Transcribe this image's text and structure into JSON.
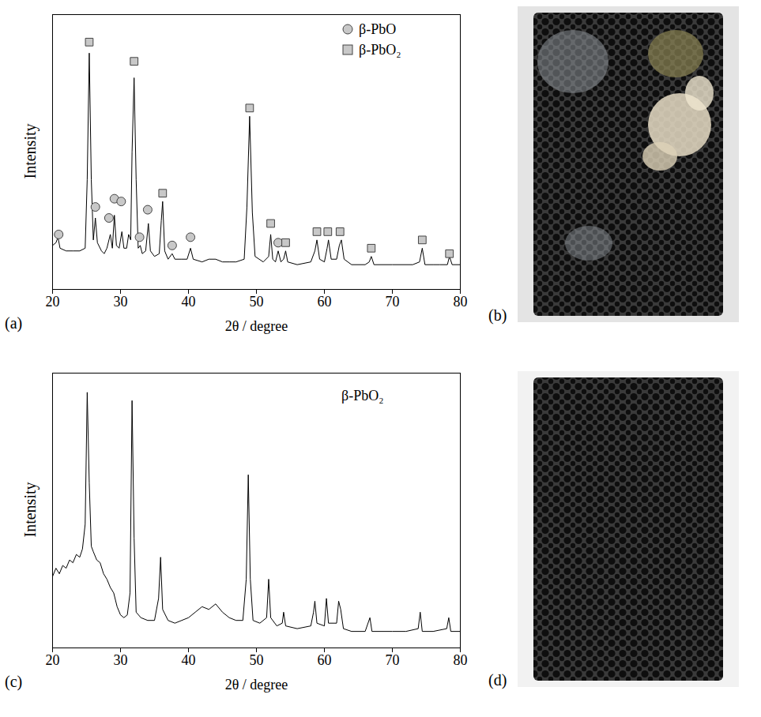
{
  "chart_data": [
    {
      "type": "line",
      "panel_label": "(a)",
      "x_label": "2θ / degree",
      "y_label": "Intensity",
      "xlim": [
        20,
        80
      ],
      "xticks": [
        20,
        30,
        40,
        50,
        60,
        70,
        80
      ],
      "ylim": [
        0,
        100
      ],
      "yticks": [],
      "tick_labels": "x",
      "legend": "top-right",
      "color": "#000000",
      "x": [
        20,
        20.5,
        20.8,
        21.1,
        22,
        23,
        24,
        24.8,
        25.1,
        25.4,
        25.7,
        26.0,
        26.3,
        26.6,
        27.2,
        27.6,
        28.0,
        28.5,
        28.8,
        29.1,
        29.4,
        29.8,
        30.2,
        30.5,
        30.9,
        31.2,
        31.5,
        31.7,
        32.0,
        32.3,
        32.6,
        32.9,
        33.2,
        33.7,
        34.1,
        34.4,
        35.0,
        35.7,
        36.0,
        36.2,
        36.5,
        37.0,
        37.6,
        38.0,
        39.0,
        39.8,
        40.3,
        40.7,
        42,
        43,
        44,
        45,
        46,
        47,
        48.2,
        48.6,
        49.0,
        49.4,
        49.8,
        51,
        51.8,
        52.1,
        52.4,
        52.8,
        53.2,
        53.6,
        54.0,
        54.3,
        54.6,
        56,
        58,
        58.6,
        58.9,
        59.3,
        60.0,
        60.4,
        60.6,
        61.0,
        61.8,
        62.2,
        62.5,
        62.9,
        64,
        66,
        66.6,
        66.9,
        67.3,
        70,
        73,
        74.0,
        74.4,
        74.8,
        76,
        77,
        78.1,
        78.4,
        78.8,
        80
      ],
      "values": [
        16,
        17,
        19,
        15,
        14,
        14,
        14,
        15,
        40,
        86,
        40,
        18,
        26,
        17,
        14,
        13,
        15,
        20,
        15,
        27,
        16,
        15,
        21,
        15,
        15,
        20,
        18,
        50,
        77,
        40,
        15,
        16,
        13,
        14,
        24,
        14,
        12,
        13,
        25,
        32,
        14,
        11,
        13,
        11,
        11,
        11,
        15,
        11,
        10,
        11,
        11,
        10,
        10,
        10,
        11,
        30,
        63,
        28,
        12,
        10,
        12,
        20,
        11,
        10,
        14,
        10,
        11,
        14,
        10,
        9,
        10,
        14,
        18,
        11,
        10,
        15,
        18,
        11,
        11,
        16,
        18,
        11,
        9,
        9,
        10,
        12,
        9,
        9,
        9,
        10,
        15,
        9,
        9,
        9,
        9,
        12,
        9,
        9
      ],
      "series": [
        {
          "name": "β-PbO",
          "type": "scatter",
          "marker": "circle",
          "color": "#c8c8c8",
          "x": [
            20.9,
            26.3,
            28.3,
            29.1,
            30.1,
            32.8,
            34.0,
            37.6,
            40.3,
            53.2
          ],
          "values": [
            20,
            30,
            26,
            33,
            32,
            19,
            29,
            16,
            19,
            17
          ]
        },
        {
          "name": "β-PbO₂",
          "type": "scatter",
          "marker": "square",
          "color": "#c8c8c8",
          "x": [
            25.4,
            32.0,
            36.2,
            49.0,
            52.1,
            54.3,
            58.9,
            60.5,
            62.3,
            66.9,
            74.4,
            78.4
          ],
          "values": [
            90,
            83,
            35,
            66,
            24,
            17,
            21,
            21,
            21,
            15,
            18,
            13
          ]
        }
      ]
    },
    {
      "type": "line",
      "panel_label": "(c)",
      "x_label": "2θ / degree",
      "y_label": "Intensity",
      "xlim": [
        20,
        80
      ],
      "xticks": [
        20,
        30,
        40,
        50,
        60,
        70,
        80
      ],
      "ylim": [
        0,
        100
      ],
      "yticks": [],
      "tick_labels": "x",
      "color": "#000000",
      "annotations": [
        "β-PbO₂"
      ],
      "x": [
        20,
        20.5,
        21,
        21.5,
        22,
        22.5,
        23,
        23.5,
        24,
        24.4,
        24.8,
        25.1,
        25.4,
        25.7,
        26,
        26.5,
        27,
        27.5,
        28,
        28.5,
        29,
        29.5,
        30,
        30.5,
        31,
        31.4,
        31.7,
        32.0,
        32.3,
        33,
        34,
        35,
        35.6,
        35.9,
        36.2,
        37,
        38,
        39,
        40,
        41,
        42,
        43,
        44,
        45,
        46,
        47,
        48,
        48.5,
        48.8,
        49.1,
        49.5,
        50.5,
        51.5,
        51.8,
        52.1,
        53,
        53.8,
        54.0,
        54.3,
        56,
        58,
        58.4,
        58.6,
        58.9,
        60,
        60.3,
        60.6,
        61.8,
        62.1,
        62.4,
        62.8,
        64,
        66,
        66.7,
        67,
        70,
        72,
        73.8,
        74.1,
        74.4,
        76,
        78,
        78.3,
        78.6,
        80
      ],
      "values": [
        26,
        29,
        27,
        30,
        29,
        32,
        31,
        34,
        33,
        36,
        45,
        93,
        60,
        37,
        35,
        32,
        31,
        27,
        25,
        22,
        20,
        15,
        12,
        11,
        12,
        20,
        90,
        40,
        13,
        11,
        10,
        10,
        18,
        33,
        14,
        10,
        9,
        10,
        11,
        13,
        15,
        14,
        16,
        13,
        11,
        10,
        10,
        25,
        63,
        25,
        10,
        9,
        11,
        25,
        11,
        8,
        9,
        13,
        8,
        7,
        8,
        13,
        17,
        9,
        8,
        18,
        9,
        9,
        17,
        14,
        7,
        6,
        6,
        11,
        6,
        6,
        6,
        7,
        13,
        6,
        6,
        7,
        11,
        6,
        6
      ]
    }
  ],
  "images": [
    {
      "panel_label": "(b)"
    },
    {
      "panel_label": "(d)"
    }
  ]
}
